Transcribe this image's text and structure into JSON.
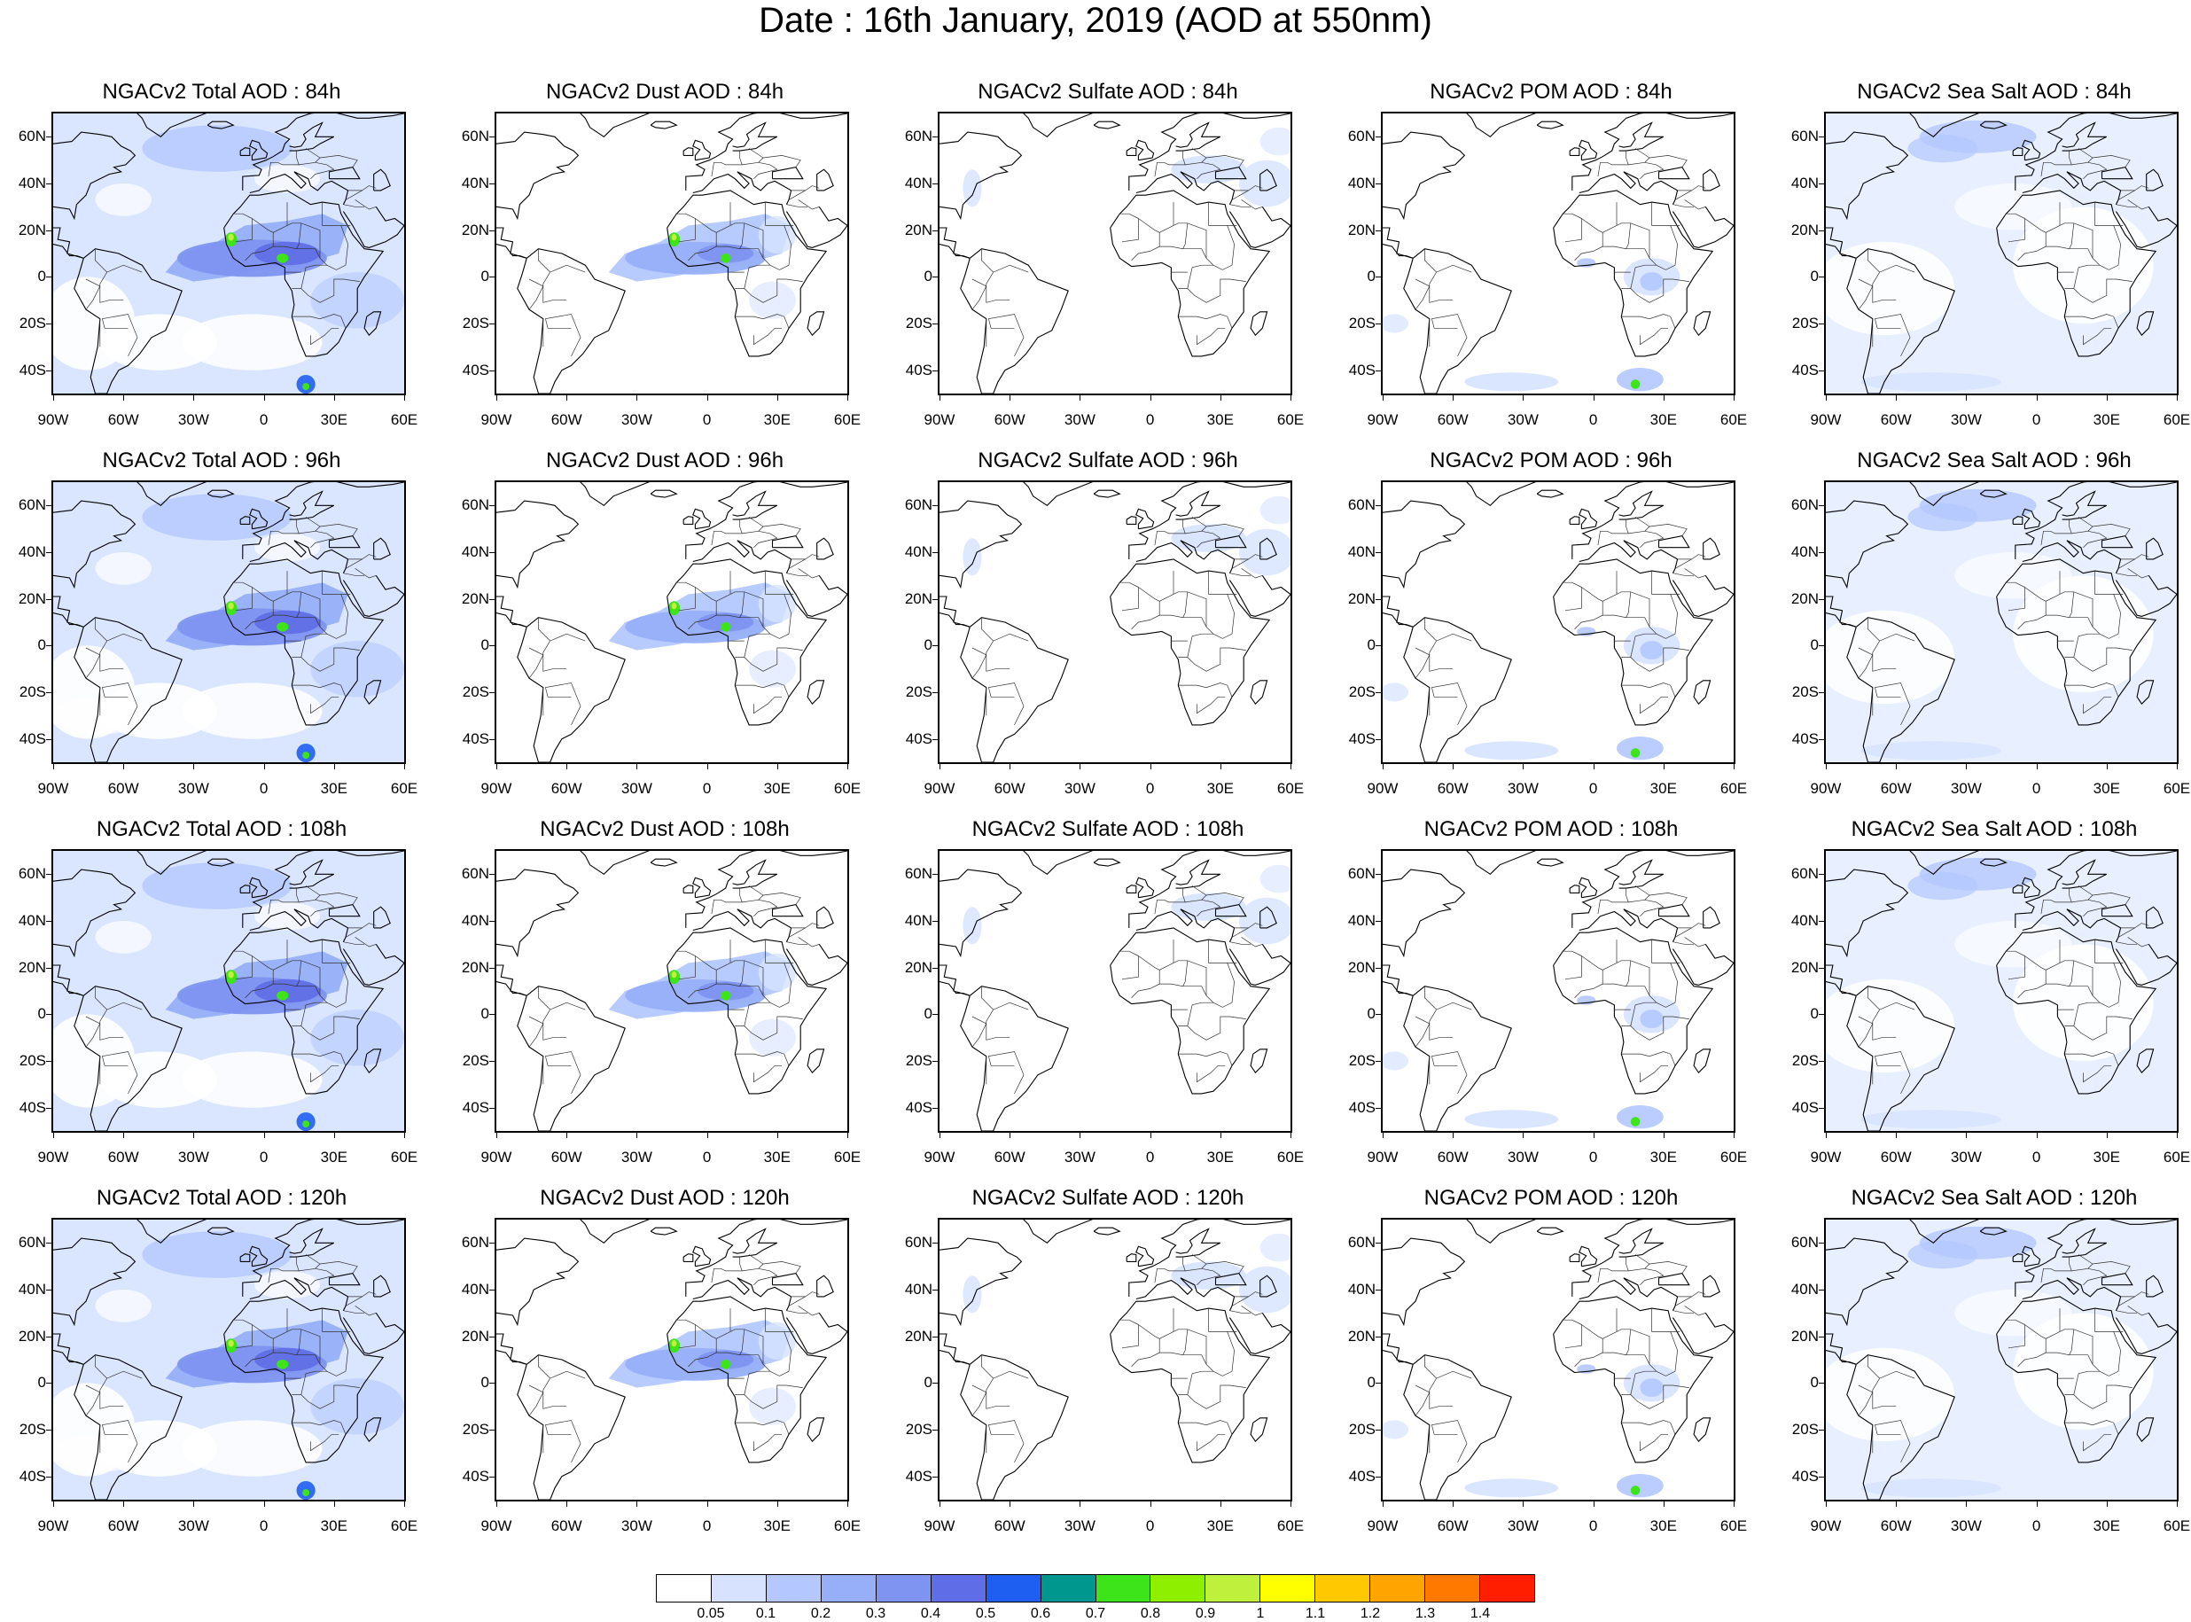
{
  "title": "Date : 16th January, 2019 (AOD at 550nm)",
  "panels": [
    [
      "NGACv2 Total AOD : 84h",
      "NGACv2 Dust AOD : 84h",
      "NGACv2 Sulfate AOD : 84h",
      "NGACv2 POM AOD : 84h",
      "NGACv2 Sea Salt AOD : 84h"
    ],
    [
      "NGACv2 Total AOD : 96h",
      "NGACv2 Dust AOD : 96h",
      "NGACv2 Sulfate AOD : 96h",
      "NGACv2 POM AOD : 96h",
      "NGACv2 Sea Salt AOD : 96h"
    ],
    [
      "NGACv2 Total AOD : 108h",
      "NGACv2 Dust AOD : 108h",
      "NGACv2 Sulfate AOD : 108h",
      "NGACv2 POM AOD : 108h",
      "NGACv2 Sea Salt AOD : 108h"
    ],
    [
      "NGACv2 Total AOD : 120h",
      "NGACv2 Dust AOD : 120h",
      "NGACv2 Sulfate AOD : 120h",
      "NGACv2 POM AOD : 120h",
      "NGACv2 Sea Salt  AOD : 120h"
    ]
  ],
  "species": [
    "total",
    "dust",
    "sulfate",
    "pom",
    "seasalt"
  ],
  "lat_labels": [
    "60N",
    "40N",
    "20N",
    "0",
    "20S",
    "40S"
  ],
  "lat_values": [
    60,
    40,
    20,
    0,
    -20,
    -40
  ],
  "lon_labels": [
    "90W",
    "60W",
    "30W",
    "0",
    "30E",
    "60E"
  ],
  "lon_values": [
    -90,
    -60,
    -30,
    0,
    30,
    60
  ],
  "extent": {
    "lon": [
      -90,
      60
    ],
    "lat": [
      -50,
      70
    ]
  },
  "colorbar": {
    "colors": [
      "#ffffff",
      "#d6e2ff",
      "#b4c8ff",
      "#96aff8",
      "#7e94f0",
      "#5f6de6",
      "#1e5ef0",
      "#00978f",
      "#3de41a",
      "#8ef000",
      "#bef03c",
      "#ffff00",
      "#ffc800",
      "#ffa400",
      "#ff7800",
      "#ff1e00"
    ],
    "labels": [
      "0.05",
      "0.1",
      "0.2",
      "0.3",
      "0.4",
      "0.5",
      "0.6",
      "0.7",
      "0.8",
      "0.9",
      "1",
      "1.1",
      "1.2",
      "1.3",
      "1.4"
    ]
  }
}
